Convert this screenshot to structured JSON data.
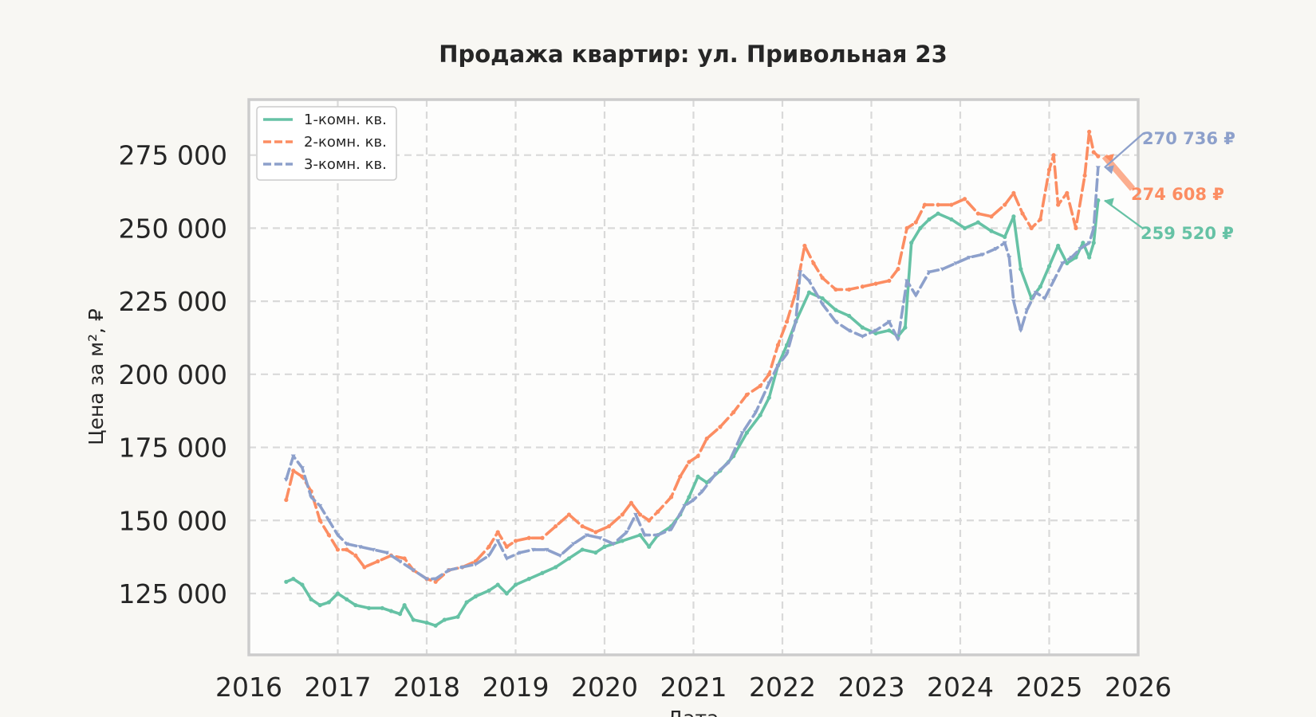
{
  "chart_data": {
    "type": "line",
    "title": "Продажа квартир: ул. Привольная 23",
    "xlabel": "Дата",
    "ylabel": "Цена за м², ₽",
    "xlim": [
      2016.0,
      2026.0
    ],
    "ylim": [
      104000,
      294000
    ],
    "x_ticks": [
      "2016",
      "2017",
      "2018",
      "2019",
      "2020",
      "2021",
      "2022",
      "2023",
      "2024",
      "2025",
      "2026"
    ],
    "y_ticks": [
      "125 000",
      "150 000",
      "175 000",
      "200 000",
      "225 000",
      "250 000",
      "275 000"
    ],
    "y_tick_values": [
      125000,
      150000,
      175000,
      200000,
      225000,
      250000,
      275000
    ],
    "grid": true,
    "legend_position": "top-left",
    "series": [
      {
        "name": "1-комн. кв.",
        "color": "#66c2a5",
        "dash": "solid",
        "marker": "circle",
        "end_label": "259 520 ₽",
        "end_value": 259520,
        "x": [
          2016.42,
          2016.5,
          2016.6,
          2016.7,
          2016.8,
          2016.9,
          2017.0,
          2017.1,
          2017.2,
          2017.35,
          2017.5,
          2017.6,
          2017.7,
          2017.75,
          2017.85,
          2018.0,
          2018.1,
          2018.2,
          2018.35,
          2018.45,
          2018.55,
          2018.7,
          2018.8,
          2018.9,
          2019.0,
          2019.15,
          2019.3,
          2019.45,
          2019.6,
          2019.75,
          2019.9,
          2020.0,
          2020.2,
          2020.4,
          2020.5,
          2020.6,
          2020.75,
          2020.85,
          2020.95,
          2021.05,
          2021.15,
          2021.3,
          2021.45,
          2021.6,
          2021.75,
          2021.85,
          2021.95,
          2022.05,
          2022.15,
          2022.3,
          2022.45,
          2022.6,
          2022.75,
          2022.9,
          2023.05,
          2023.2,
          2023.3,
          2023.38,
          2023.45,
          2023.55,
          2023.65,
          2023.75,
          2023.9,
          2024.05,
          2024.2,
          2024.35,
          2024.5,
          2024.6,
          2024.68,
          2024.8,
          2024.9,
          2025.0,
          2025.1,
          2025.2,
          2025.3,
          2025.38,
          2025.45,
          2025.5,
          2025.55
        ],
        "values": [
          129000,
          130000,
          128000,
          123000,
          121000,
          122000,
          125000,
          123000,
          121000,
          120000,
          120000,
          119000,
          118000,
          121000,
          116000,
          115000,
          114000,
          116000,
          117000,
          122000,
          124000,
          126000,
          128000,
          125000,
          128000,
          130000,
          132000,
          134000,
          137000,
          140000,
          139000,
          141000,
          143000,
          145000,
          141000,
          145000,
          148000,
          152000,
          158000,
          165000,
          163000,
          167000,
          172000,
          180000,
          186000,
          192000,
          203000,
          210000,
          218000,
          228000,
          226000,
          222000,
          220000,
          216000,
          214000,
          215000,
          213000,
          216000,
          245000,
          250000,
          253000,
          255000,
          253000,
          250000,
          252000,
          249000,
          247000,
          254000,
          236000,
          226000,
          230000,
          237000,
          244000,
          238000,
          240000,
          245000,
          240000,
          245000,
          259520
        ]
      },
      {
        "name": "2-комн. кв.",
        "color": "#fc8d62",
        "dash": "long-dash",
        "marker": "circle",
        "end_label": "274 608 ₽",
        "end_value": 274608,
        "x": [
          2016.42,
          2016.5,
          2016.6,
          2016.7,
          2016.8,
          2016.9,
          2017.0,
          2017.1,
          2017.2,
          2017.3,
          2017.45,
          2017.6,
          2017.75,
          2017.85,
          2018.0,
          2018.1,
          2018.25,
          2018.4,
          2018.55,
          2018.7,
          2018.8,
          2018.9,
          2019.0,
          2019.15,
          2019.3,
          2019.45,
          2019.6,
          2019.75,
          2019.9,
          2020.05,
          2020.2,
          2020.3,
          2020.4,
          2020.5,
          2020.6,
          2020.75,
          2020.85,
          2020.95,
          2021.05,
          2021.15,
          2021.3,
          2021.45,
          2021.6,
          2021.75,
          2021.85,
          2021.95,
          2022.05,
          2022.15,
          2022.25,
          2022.35,
          2022.45,
          2022.6,
          2022.75,
          2022.9,
          2023.05,
          2023.2,
          2023.3,
          2023.4,
          2023.5,
          2023.6,
          2023.75,
          2023.9,
          2024.05,
          2024.2,
          2024.35,
          2024.5,
          2024.6,
          2024.7,
          2024.8,
          2024.9,
          2025.0,
          2025.05,
          2025.1,
          2025.2,
          2025.3,
          2025.4,
          2025.45,
          2025.5,
          2025.55
        ],
        "values": [
          157000,
          167000,
          165000,
          160000,
          150000,
          145000,
          140000,
          140000,
          138000,
          134000,
          136000,
          138000,
          137000,
          133000,
          130000,
          129000,
          133000,
          134000,
          136000,
          141000,
          146000,
          141000,
          143000,
          144000,
          144000,
          148000,
          152000,
          148000,
          146000,
          148000,
          152000,
          156000,
          152000,
          150000,
          153000,
          158000,
          165000,
          170000,
          172000,
          178000,
          182000,
          187000,
          193000,
          196000,
          200000,
          210000,
          218000,
          228000,
          244000,
          238000,
          233000,
          229000,
          229000,
          230000,
          231000,
          232000,
          236000,
          250000,
          252000,
          258000,
          258000,
          258000,
          260000,
          255000,
          254000,
          258000,
          262000,
          255000,
          250000,
          253000,
          270000,
          275000,
          258000,
          262000,
          250000,
          268000,
          283000,
          276000,
          274608
        ]
      },
      {
        "name": "3-комн. кв.",
        "color": "#8da0cb",
        "dash": "long-dash",
        "marker": "triangle",
        "end_label": "270 736 ₽",
        "end_value": 270736,
        "x": [
          2016.42,
          2016.5,
          2016.6,
          2016.7,
          2016.8,
          2016.9,
          2017.0,
          2017.1,
          2017.25,
          2017.4,
          2017.55,
          2017.7,
          2017.85,
          2018.0,
          2018.1,
          2018.25,
          2018.4,
          2018.55,
          2018.7,
          2018.8,
          2018.9,
          2019.05,
          2019.2,
          2019.35,
          2019.5,
          2019.65,
          2019.8,
          2019.95,
          2020.1,
          2020.25,
          2020.35,
          2020.45,
          2020.6,
          2020.75,
          2020.9,
          2021.0,
          2021.1,
          2021.25,
          2021.4,
          2021.55,
          2021.7,
          2021.85,
          2021.95,
          2022.05,
          2022.15,
          2022.2,
          2022.3,
          2022.45,
          2022.6,
          2022.75,
          2022.9,
          2023.05,
          2023.2,
          2023.3,
          2023.4,
          2023.5,
          2023.65,
          2023.8,
          2023.95,
          2024.1,
          2024.25,
          2024.4,
          2024.5,
          2024.55,
          2024.6,
          2024.68,
          2024.75,
          2024.85,
          2024.95,
          2025.05,
          2025.15,
          2025.25,
          2025.35,
          2025.45,
          2025.5,
          2025.55
        ],
        "values": [
          164000,
          172000,
          168000,
          158000,
          155000,
          150000,
          145000,
          142000,
          141000,
          140000,
          139000,
          136000,
          133000,
          130000,
          130000,
          133000,
          134000,
          135000,
          138000,
          143000,
          137000,
          139000,
          140000,
          140000,
          138000,
          142000,
          145000,
          144000,
          142000,
          146000,
          152000,
          145000,
          145000,
          147000,
          155000,
          157000,
          160000,
          166000,
          170000,
          180000,
          187000,
          197000,
          203000,
          207000,
          218000,
          235000,
          232000,
          224000,
          218000,
          215000,
          213000,
          215000,
          218000,
          212000,
          232000,
          227000,
          235000,
          236000,
          238000,
          240000,
          241000,
          243000,
          245000,
          240000,
          225000,
          215000,
          222000,
          228000,
          226000,
          232000,
          238000,
          240000,
          243000,
          245000,
          250000,
          270736
        ]
      }
    ]
  }
}
